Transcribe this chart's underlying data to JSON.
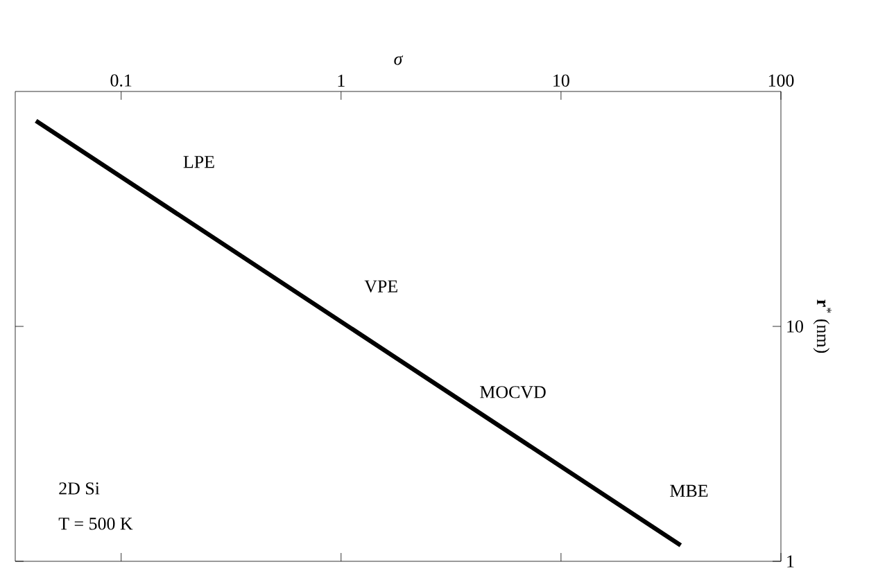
{
  "chart_data": {
    "type": "line",
    "xlabel": "σ",
    "ylabel": "**r**$^{*}$ (nm)",
    "log": "xy",
    "xlim": [
      0.033,
      100
    ],
    "ylim": [
      1,
      100
    ],
    "xticks": [
      0.1,
      1,
      10,
      100
    ],
    "yticks": [
      1,
      10
    ],
    "series": [
      {
        "color": "#000000",
        "x": [
          0.041,
          35
        ],
        "values": [
          75,
          1.17
        ]
      }
    ],
    "annotations": [
      "LPE",
      "VPE",
      "MOCVD",
      "MBE",
      "2D Si",
      "T = 500 K"
    ],
    "line_style": "solid",
    "marker": "none"
  }
}
